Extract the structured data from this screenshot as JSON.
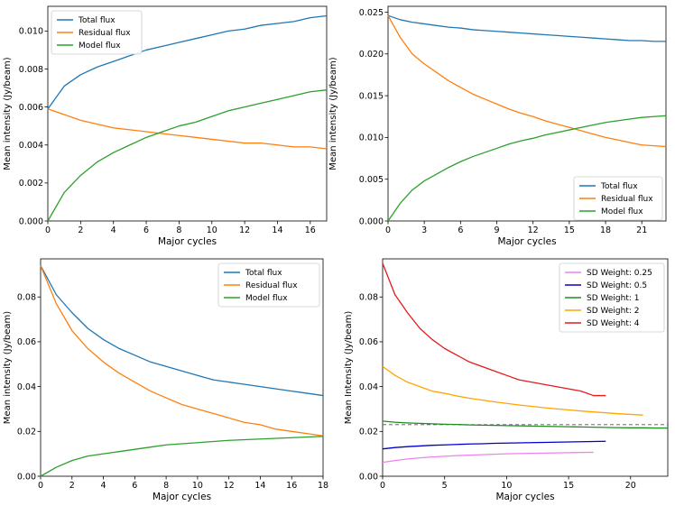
{
  "chart_data": [
    {
      "type": "line",
      "xlabel": "Major cycles",
      "ylabel": "Mean intensity (Jy/beam)",
      "xlim": [
        0,
        17
      ],
      "ylim": [
        0,
        0.0113
      ],
      "xticks": [
        0,
        2,
        4,
        6,
        8,
        10,
        12,
        14,
        16
      ],
      "xtick_labels": [
        "0",
        "2",
        "4",
        "6",
        "8",
        "10",
        "12",
        "14",
        "16"
      ],
      "yticks": [
        0,
        0.002,
        0.004,
        0.006,
        0.008,
        0.01
      ],
      "ytick_labels": [
        "0.000",
        "0.002",
        "0.004",
        "0.006",
        "0.008",
        "0.010"
      ],
      "legend_position": "top-left",
      "x": [
        0,
        1,
        2,
        3,
        4,
        5,
        6,
        7,
        8,
        9,
        10,
        11,
        12,
        13,
        14,
        15,
        16,
        17
      ],
      "series": [
        {
          "name": "Total flux",
          "color": "#1f77b4",
          "values": [
            0.0059,
            0.0071,
            0.0077,
            0.0081,
            0.0084,
            0.0087,
            0.009,
            0.0092,
            0.0094,
            0.0096,
            0.0098,
            0.01,
            0.0101,
            0.0103,
            0.0104,
            0.0105,
            0.0107,
            0.0108
          ]
        },
        {
          "name": "Residual flux",
          "color": "#ff7f0e",
          "values": [
            0.0059,
            0.0056,
            0.0053,
            0.0051,
            0.0049,
            0.0048,
            0.0047,
            0.0046,
            0.0045,
            0.0044,
            0.0043,
            0.0042,
            0.0041,
            0.0041,
            0.004,
            0.0039,
            0.0039,
            0.0038
          ]
        },
        {
          "name": "Model flux",
          "color": "#2ca02c",
          "values": [
            0.0,
            0.0015,
            0.0024,
            0.0031,
            0.0036,
            0.004,
            0.0044,
            0.0047,
            0.005,
            0.0052,
            0.0055,
            0.0058,
            0.006,
            0.0062,
            0.0064,
            0.0066,
            0.0068,
            0.0069
          ]
        }
      ]
    },
    {
      "type": "line",
      "xlabel": "Major cycles",
      "ylabel": "Mean intensity (Jy/beam)",
      "xlim": [
        0,
        23
      ],
      "ylim": [
        0,
        0.0257
      ],
      "xticks": [
        0,
        3,
        6,
        9,
        12,
        15,
        18,
        21
      ],
      "xtick_labels": [
        "0",
        "3",
        "6",
        "9",
        "12",
        "15",
        "18",
        "21"
      ],
      "yticks": [
        0,
        0.005,
        0.01,
        0.015,
        0.02,
        0.025
      ],
      "ytick_labels": [
        "0.000",
        "0.005",
        "0.010",
        "0.015",
        "0.020",
        "0.025"
      ],
      "legend_position": "bottom-right",
      "x": [
        0,
        1,
        2,
        3,
        4,
        5,
        6,
        7,
        8,
        9,
        10,
        11,
        12,
        13,
        14,
        15,
        16,
        17,
        18,
        19,
        20,
        21,
        22,
        23
      ],
      "series": [
        {
          "name": "Total flux",
          "color": "#1f77b4",
          "values": [
            0.0246,
            0.0241,
            0.0238,
            0.0236,
            0.0234,
            0.0232,
            0.0231,
            0.0229,
            0.0228,
            0.0227,
            0.0226,
            0.0225,
            0.0224,
            0.0223,
            0.0222,
            0.0221,
            0.022,
            0.0219,
            0.0218,
            0.0217,
            0.0216,
            0.0216,
            0.0215,
            0.0215
          ]
        },
        {
          "name": "Residual flux",
          "color": "#ff7f0e",
          "values": [
            0.0246,
            0.022,
            0.02,
            0.0188,
            0.0178,
            0.0168,
            0.016,
            0.0152,
            0.0146,
            0.014,
            0.0134,
            0.0129,
            0.0125,
            0.012,
            0.0116,
            0.0112,
            0.0108,
            0.0104,
            0.01,
            0.0097,
            0.0094,
            0.0091,
            0.009,
            0.0089
          ]
        },
        {
          "name": "Model flux",
          "color": "#2ca02c",
          "values": [
            0.0,
            0.0021,
            0.0037,
            0.0048,
            0.0056,
            0.0064,
            0.0071,
            0.0077,
            0.0082,
            0.0087,
            0.0092,
            0.0096,
            0.0099,
            0.0103,
            0.0106,
            0.0109,
            0.0112,
            0.0115,
            0.0118,
            0.012,
            0.0122,
            0.0124,
            0.0125,
            0.0126
          ]
        }
      ]
    },
    {
      "type": "line",
      "xlabel": "Major cycles",
      "ylabel": "Mean intensity (Jy/beam)",
      "xlim": [
        0,
        18
      ],
      "ylim": [
        0,
        0.097
      ],
      "xticks": [
        0,
        2,
        4,
        6,
        8,
        10,
        12,
        14,
        16,
        18
      ],
      "xtick_labels": [
        "0",
        "2",
        "4",
        "6",
        "8",
        "10",
        "12",
        "14",
        "16",
        "18"
      ],
      "yticks": [
        0,
        0.02,
        0.04,
        0.06,
        0.08
      ],
      "ytick_labels": [
        "0.00",
        "0.02",
        "0.04",
        "0.06",
        "0.08"
      ],
      "legend_position": "top-right",
      "x": [
        0,
        1,
        2,
        3,
        4,
        5,
        6,
        7,
        8,
        9,
        10,
        11,
        12,
        13,
        14,
        15,
        16,
        17,
        18
      ],
      "series": [
        {
          "name": "Total flux",
          "color": "#1f77b4",
          "values": [
            0.094,
            0.081,
            0.073,
            0.066,
            0.061,
            0.057,
            0.054,
            0.051,
            0.049,
            0.047,
            0.045,
            0.043,
            0.042,
            0.041,
            0.04,
            0.039,
            0.038,
            0.037,
            0.036
          ]
        },
        {
          "name": "Residual flux",
          "color": "#ff7f0e",
          "values": [
            0.094,
            0.077,
            0.065,
            0.057,
            0.051,
            0.046,
            0.042,
            0.038,
            0.035,
            0.032,
            0.03,
            0.028,
            0.026,
            0.024,
            0.023,
            0.021,
            0.02,
            0.019,
            0.018
          ]
        },
        {
          "name": "Model flux",
          "color": "#2ca02c",
          "values": [
            0.0,
            0.004,
            0.007,
            0.009,
            0.01,
            0.011,
            0.012,
            0.013,
            0.014,
            0.0145,
            0.015,
            0.0155,
            0.016,
            0.0163,
            0.0166,
            0.0169,
            0.0172,
            0.0175,
            0.0178
          ]
        }
      ]
    },
    {
      "type": "line",
      "xlabel": "Major cycles",
      "ylabel": "Mean Intensity (Jy/beam)",
      "xlim": [
        0,
        23
      ],
      "ylim": [
        0,
        0.097
      ],
      "xticks": [
        0,
        5,
        10,
        15,
        20
      ],
      "xtick_labels": [
        "0",
        "5",
        "10",
        "15",
        "20"
      ],
      "yticks": [
        0,
        0.02,
        0.04,
        0.06,
        0.08
      ],
      "ytick_labels": [
        "0.00",
        "0.02",
        "0.04",
        "0.06",
        "0.08"
      ],
      "legend_position": "top-right",
      "reference_line": {
        "y": 0.023,
        "style": "dashed",
        "color": "#555555"
      },
      "series": [
        {
          "name": "SD Weight: 0.25",
          "color": "#ee82ee",
          "x": [
            0,
            1,
            2,
            3,
            4,
            5,
            6,
            7,
            8,
            9,
            10,
            11,
            12,
            13,
            14,
            15,
            16,
            17
          ],
          "values": [
            0.0062,
            0.007,
            0.0077,
            0.0082,
            0.0086,
            0.0089,
            0.0092,
            0.0094,
            0.0096,
            0.0098,
            0.01,
            0.0101,
            0.0102,
            0.0103,
            0.0104,
            0.0105,
            0.0106,
            0.0107
          ]
        },
        {
          "name": "SD Weight: 0.5",
          "color": "#0000cd",
          "x": [
            0,
            1,
            2,
            3,
            4,
            5,
            6,
            7,
            8,
            9,
            10,
            11,
            12,
            13,
            14,
            15,
            16,
            17,
            18
          ],
          "values": [
            0.0122,
            0.0128,
            0.0132,
            0.0135,
            0.0138,
            0.014,
            0.0142,
            0.0144,
            0.0145,
            0.0147,
            0.0148,
            0.0149,
            0.015,
            0.0151,
            0.0152,
            0.0153,
            0.0154,
            0.0155,
            0.0156
          ]
        },
        {
          "name": "SD Weight: 1",
          "color": "#228b22",
          "x": [
            0,
            1,
            2,
            3,
            4,
            5,
            6,
            7,
            8,
            9,
            10,
            11,
            12,
            13,
            14,
            15,
            16,
            17,
            18,
            19,
            20,
            21,
            22,
            23
          ],
          "values": [
            0.0246,
            0.0241,
            0.0238,
            0.0236,
            0.0234,
            0.0232,
            0.0231,
            0.0229,
            0.0228,
            0.0227,
            0.0226,
            0.0225,
            0.0224,
            0.0223,
            0.0222,
            0.0221,
            0.022,
            0.0219,
            0.0218,
            0.0217,
            0.0216,
            0.0216,
            0.0215,
            0.0215
          ]
        },
        {
          "name": "SD Weight: 2",
          "color": "#ffa500",
          "x": [
            0,
            1,
            2,
            3,
            4,
            5,
            6,
            7,
            8,
            9,
            10,
            11,
            12,
            13,
            14,
            15,
            16,
            17,
            18,
            19,
            20,
            21
          ],
          "values": [
            0.049,
            0.045,
            0.042,
            0.04,
            0.038,
            0.037,
            0.0358,
            0.0348,
            0.034,
            0.0332,
            0.0325,
            0.0318,
            0.0312,
            0.0306,
            0.0301,
            0.0296,
            0.0291,
            0.0287,
            0.0283,
            0.0279,
            0.0276,
            0.0273
          ]
        },
        {
          "name": "SD Weight: 4",
          "color": "#e41a1c",
          "x": [
            0,
            1,
            2,
            3,
            4,
            5,
            6,
            7,
            8,
            9,
            10,
            11,
            12,
            13,
            14,
            15,
            16,
            17,
            18
          ],
          "values": [
            0.095,
            0.081,
            0.073,
            0.066,
            0.061,
            0.057,
            0.054,
            0.051,
            0.049,
            0.047,
            0.045,
            0.043,
            0.042,
            0.041,
            0.04,
            0.039,
            0.038,
            0.036,
            0.036
          ]
        }
      ]
    }
  ]
}
